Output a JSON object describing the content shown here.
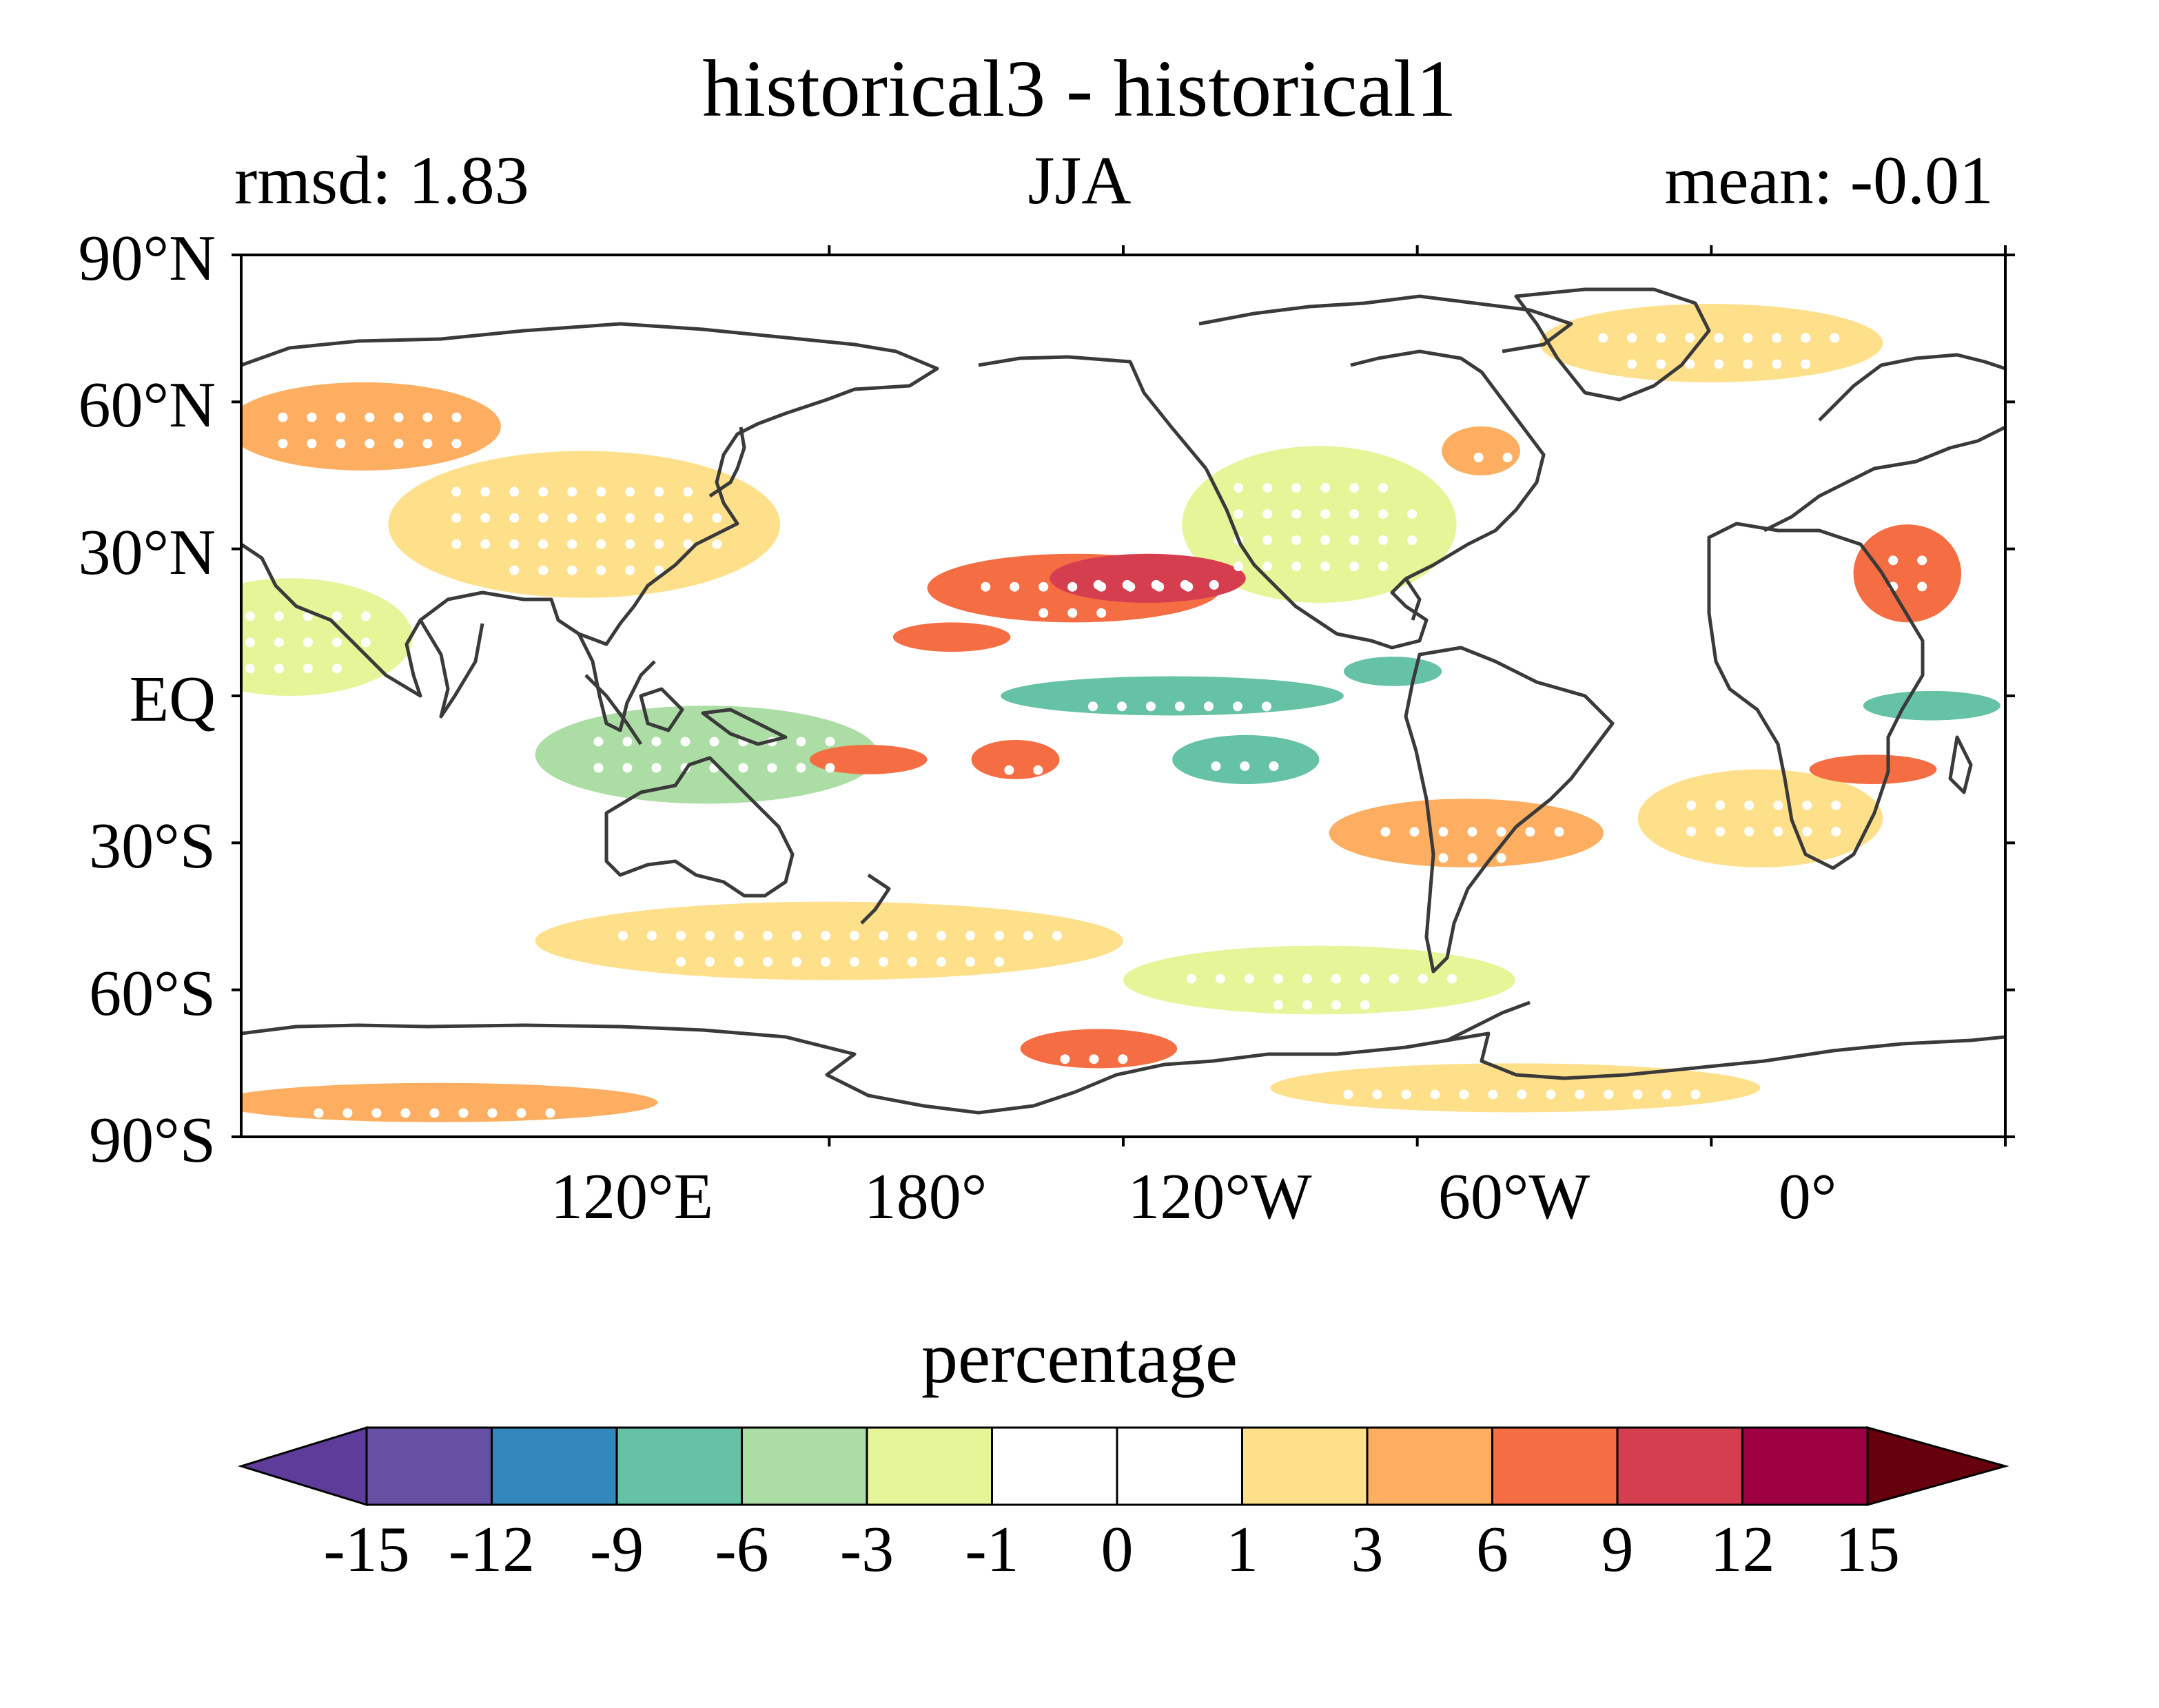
{
  "title": "historical3 - historical1",
  "subtitle": {
    "left": "rmsd: 1.83",
    "center": "JJA",
    "right": "mean: -0.01"
  },
  "map": {
    "projection": "PlateCarree",
    "central_longitude": 180,
    "lat_range": [
      -90,
      90
    ],
    "lon_range": [
      0,
      360
    ],
    "lat_ticks": [
      "90°N",
      "60°N",
      "30°N",
      "EQ",
      "30°S",
      "60°S",
      "90°S"
    ],
    "lon_ticks": [
      "120°E",
      "180°",
      "120°W",
      "60°W",
      "0°"
    ],
    "coastline_color": "#3a3a3a",
    "stippling": "white dots mark significant differences",
    "field_blobs": [
      {
        "lon": 170,
        "lat": 22,
        "rx": 30,
        "ry": 7,
        "level": 3
      },
      {
        "lon": 185,
        "lat": 24,
        "rx": 20,
        "ry": 5,
        "level": 4
      },
      {
        "lon": 145,
        "lat": 12,
        "rx": 12,
        "ry": 3,
        "level": 3
      },
      {
        "lon": 190,
        "lat": 0,
        "rx": 35,
        "ry": 4,
        "level": -3
      },
      {
        "lon": 205,
        "lat": -13,
        "rx": 15,
        "ry": 5,
        "level": -3
      },
      {
        "lon": 340,
        "lat": 25,
        "rx": 11,
        "ry": 10,
        "level": 3
      },
      {
        "lon": 333,
        "lat": -15,
        "rx": 13,
        "ry": 3,
        "level": 3
      },
      {
        "lon": 128,
        "lat": -13,
        "rx": 12,
        "ry": 3,
        "level": 3
      },
      {
        "lon": 158,
        "lat": -13,
        "rx": 9,
        "ry": 4,
        "level": 3
      },
      {
        "lon": 345,
        "lat": -2,
        "rx": 14,
        "ry": 3,
        "level": -3
      },
      {
        "lon": 235,
        "lat": 5,
        "rx": 10,
        "ry": 3,
        "level": -3
      },
      {
        "lon": 175,
        "lat": -72,
        "rx": 16,
        "ry": 4,
        "level": 3
      },
      {
        "lon": 253,
        "lat": 50,
        "rx": 8,
        "ry": 5,
        "level": 2
      },
      {
        "lon": 25,
        "lat": 55,
        "rx": 28,
        "ry": 9,
        "level": 2
      },
      {
        "lon": 250,
        "lat": -28,
        "rx": 28,
        "ry": 7,
        "level": 2
      },
      {
        "lon": 70,
        "lat": 35,
        "rx": 40,
        "ry": 15,
        "level": 1
      },
      {
        "lon": 220,
        "lat": 35,
        "rx": 28,
        "ry": 16,
        "level": -1
      },
      {
        "lon": 310,
        "lat": -25,
        "rx": 25,
        "ry": 10,
        "level": 1
      },
      {
        "lon": 95,
        "lat": -12,
        "rx": 35,
        "ry": 10,
        "level": -2
      },
      {
        "lon": 120,
        "lat": -50,
        "rx": 60,
        "ry": 8,
        "level": 1
      },
      {
        "lon": 220,
        "lat": -58,
        "rx": 40,
        "ry": 7,
        "level": -1
      },
      {
        "lon": 300,
        "lat": 72,
        "rx": 35,
        "ry": 8,
        "level": 1
      },
      {
        "lon": 10,
        "lat": 12,
        "rx": 25,
        "ry": 12,
        "level": -1
      },
      {
        "lon": 260,
        "lat": -80,
        "rx": 50,
        "ry": 5,
        "level": 1
      },
      {
        "lon": 40,
        "lat": -83,
        "rx": 45,
        "ry": 4,
        "level": 2
      }
    ]
  },
  "colorbar": {
    "label": "percentage",
    "tick_labels": [
      "-15",
      "-12",
      "-9",
      "-6",
      "-3",
      "-1",
      "0",
      "1",
      "3",
      "6",
      "9",
      "12",
      "15"
    ],
    "levels": [
      -15,
      -12,
      -9,
      -6,
      -3,
      -1,
      0,
      1,
      3,
      6,
      9,
      12,
      15
    ],
    "extend": "both",
    "colors": [
      "#5e3c99",
      "#6550a4",
      "#3288bd",
      "#66c2a5",
      "#abdda4",
      "#e6f598",
      "#ffffff",
      "#ffffff",
      "#fee08b",
      "#fdae61",
      "#f46d43",
      "#d53e4f",
      "#9e0142",
      "#67000d"
    ]
  }
}
